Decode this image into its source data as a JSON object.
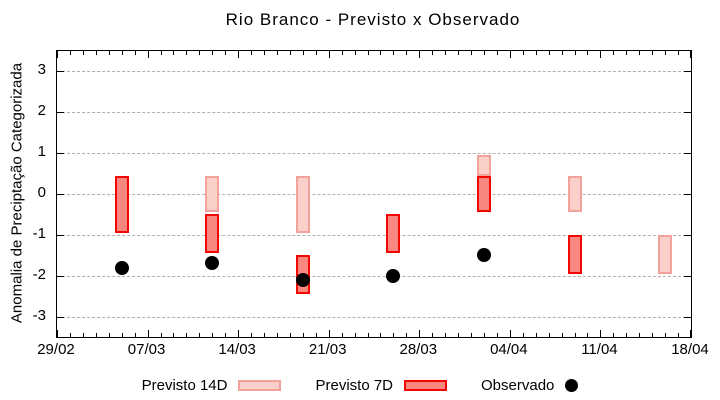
{
  "title": "Rio Branco - Previsto x Observado",
  "y_axis": {
    "label": "Anomalia de Preciptação Categorizada",
    "ticks": [
      3,
      2,
      1,
      0,
      -1,
      -2,
      -3
    ]
  },
  "x_axis": {
    "ticks": [
      {
        "label": "29/02",
        "day": 0
      },
      {
        "label": "07/03",
        "day": 7
      },
      {
        "label": "14/03",
        "day": 14
      },
      {
        "label": "21/03",
        "day": 21
      },
      {
        "label": "28/03",
        "day": 28
      },
      {
        "label": "04/04",
        "day": 35
      },
      {
        "label": "11/04",
        "day": 42
      },
      {
        "label": "18/04",
        "day": 49
      }
    ],
    "minor_tick_every_days": 1
  },
  "legend": {
    "items": [
      {
        "label": "Previsto 14D",
        "marker": "box-light-pink"
      },
      {
        "label": "Previsto 7D",
        "marker": "box-red"
      },
      {
        "label": "Observado",
        "marker": "dot-black"
      }
    ]
  },
  "colors": {
    "previsto_14d_fill": "#fbd0ca",
    "previsto_14d_border": "#f2a29a",
    "previsto_7d_fill": "#f7877f",
    "previsto_7d_border": "#f20800",
    "observado": "#000000",
    "grid": "#b0b0b0",
    "frame": "#000000"
  },
  "chart_data": {
    "type": "bar",
    "subtype": "forecast-range-bars-with-observed-points",
    "title": "Rio Branco - Previsto x Observado",
    "xlabel": "",
    "ylabel": "Anomalia de Preciptação Categorizada",
    "ylim": [
      -3.5,
      3.5
    ],
    "x_tick_labels": [
      "29/02",
      "07/03",
      "14/03",
      "21/03",
      "28/03",
      "04/04",
      "11/04",
      "18/04"
    ],
    "grid": "horizontal-dotted",
    "legend_position": "bottom",
    "series_names": [
      "Previsto 14D",
      "Previsto 7D",
      "Observado"
    ],
    "clusters": [
      {
        "date": "05/03",
        "day": 5,
        "previsto_14d": null,
        "previsto_7d": [
          0.45,
          -0.95
        ],
        "observado": -1.8
      },
      {
        "date": "12/03",
        "day": 12,
        "previsto_14d": [
          0.45,
          -0.45
        ],
        "previsto_7d": [
          -0.5,
          -1.45
        ],
        "observado": -1.7
      },
      {
        "date": "19/03",
        "day": 19,
        "previsto_14d": [
          0.45,
          -0.95
        ],
        "previsto_7d": [
          -1.5,
          -2.45
        ],
        "observado": -2.1
      },
      {
        "date": "26/03",
        "day": 26,
        "previsto_14d": null,
        "previsto_7d": [
          -0.5,
          -1.45
        ],
        "observado": -2.0
      },
      {
        "date": "02/04",
        "day": 33,
        "previsto_14d": [
          0.95,
          0.45
        ],
        "previsto_7d": [
          0.45,
          -0.45
        ],
        "observado": -1.5
      },
      {
        "date": "09/04",
        "day": 40,
        "previsto_14d": [
          0.45,
          -0.45
        ],
        "previsto_7d": [
          -1.0,
          -1.95
        ],
        "observado": null
      },
      {
        "date": "16/04",
        "day": 47,
        "previsto_14d": [
          -1.0,
          -1.95
        ],
        "previsto_7d": null,
        "observado": null
      }
    ]
  }
}
